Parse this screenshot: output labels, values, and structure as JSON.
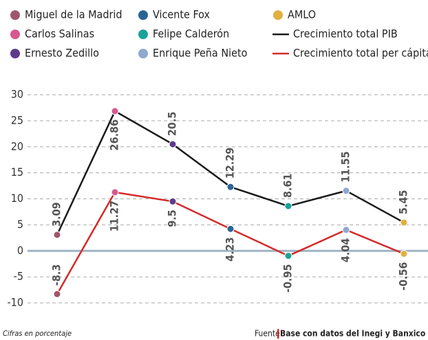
{
  "chart_data": {
    "type": "line",
    "categories": [
      "Miguel de la Madrid",
      "Carlos Salinas",
      "Ernesto Zedillo",
      "Vicente Fox",
      "Felipe Calderón",
      "Enrique Peña Nieto",
      "AMLO"
    ],
    "point_colors": [
      "#a0566a",
      "#d9588f",
      "#5e3a8c",
      "#2a6496",
      "#1aa39a",
      "#8fa8d0",
      "#e0b040"
    ],
    "series": [
      {
        "name": "Crecimiento total PIB",
        "color": "#1a1a1a",
        "values": [
          3.09,
          26.86,
          20.5,
          12.29,
          8.61,
          11.55,
          5.45
        ]
      },
      {
        "name": "Crecimiento total per cápita",
        "color": "#d42a2a",
        "values": [
          -8.3,
          11.27,
          9.5,
          4.23,
          -0.95,
          4.04,
          -0.56
        ]
      }
    ],
    "ylim": [
      -10,
      30
    ],
    "yticks": [
      -10,
      -5,
      0,
      5,
      10,
      15,
      20,
      25,
      30
    ],
    "grid": true,
    "note": "Cifras en porcentaje",
    "source_label": "Fuente",
    "source": "Base con datos del Inegi y Banxico"
  }
}
